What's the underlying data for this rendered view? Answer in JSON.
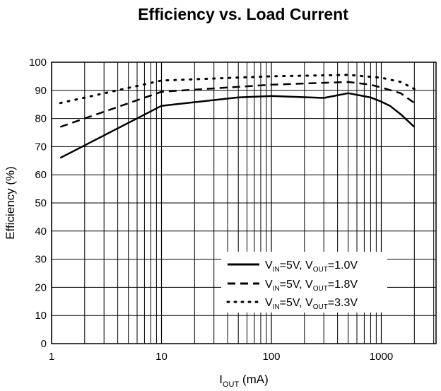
{
  "chart_data": {
    "type": "line",
    "title": "Efficiency vs. Load Current",
    "ylabel": "Efficiency (%)",
    "xlabel": {
      "main": "I",
      "sub": "OUT",
      "rest": " (mA)"
    },
    "xscale": "log",
    "xlim": [
      1,
      3000
    ],
    "ylim": [
      0,
      100
    ],
    "xticks": [
      {
        "value": 1,
        "label": "1"
      },
      {
        "value": 10,
        "label": "10"
      },
      {
        "value": 100,
        "label": "100"
      },
      {
        "value": 1000,
        "label": "1000"
      }
    ],
    "yticks": [
      0,
      10,
      20,
      30,
      40,
      50,
      60,
      70,
      80,
      90,
      100
    ],
    "grid": true,
    "legend_position": "bottom-right",
    "series": [
      {
        "legend": {
          "v_in": "5V",
          "v_out": "1.0V"
        },
        "style": "solid",
        "x": [
          1.2,
          10,
          50,
          100,
          300,
          500,
          800,
          1000,
          1200,
          1500,
          2000
        ],
        "y": [
          66,
          84.5,
          87.5,
          88,
          87.3,
          89,
          87.5,
          86,
          84.5,
          81.5,
          77
        ]
      },
      {
        "legend": {
          "v_in": "5V",
          "v_out": "1.8V"
        },
        "style": "dashed",
        "x": [
          1.2,
          10,
          100,
          500,
          800,
          1000,
          1500,
          2000
        ],
        "y": [
          77,
          89.5,
          92,
          93,
          92,
          91,
          89,
          85.5
        ]
      },
      {
        "legend": {
          "v_in": "5V",
          "v_out": "3.3V"
        },
        "style": "dotted",
        "x": [
          1.2,
          10,
          100,
          500,
          1000,
          1500,
          2000
        ],
        "y": [
          85.5,
          93.5,
          95,
          95.5,
          94.5,
          93,
          90.5
        ]
      }
    ]
  }
}
